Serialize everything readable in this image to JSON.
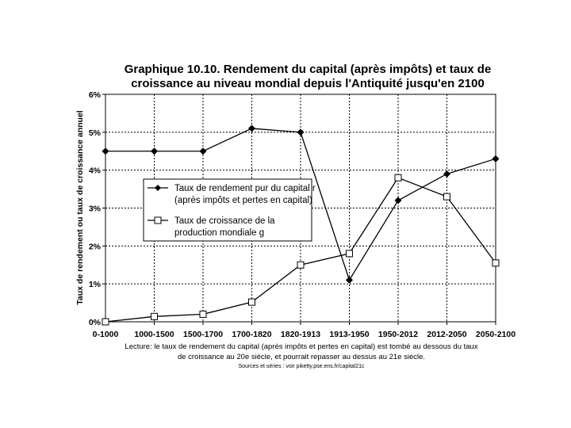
{
  "chart_data": {
    "type": "line",
    "title_line1": "Graphique 10.10. Rendement du capital (après impôts) et taux de",
    "title_line2": "croissance au niveau mondial depuis l'Antiquité jusqu'en 2100",
    "ylabel": "Taux de rendement ou taux de croissance annuel",
    "xlabel": "",
    "ylim": [
      0,
      6
    ],
    "yticks": [
      0,
      1,
      2,
      3,
      4,
      5,
      6
    ],
    "ytick_labels": [
      "0%",
      "1%",
      "2%",
      "3%",
      "4%",
      "5%",
      "6%"
    ],
    "grid": true,
    "legend_position": "center-left",
    "categories": [
      "0-1000",
      "1000-1500",
      "1500-1700",
      "1700-1820",
      "1820-1913",
      "1913-1950",
      "1950-2012",
      "2012-2050",
      "2050-2100"
    ],
    "series": [
      {
        "name": "Taux de rendement pur du capital r (après impôts et pertes en capital)",
        "legend_line1": "Taux de rendement pur du capital r",
        "legend_line2": "(après impôts et pertes en capital)",
        "marker": "diamond-filled",
        "values": [
          4.5,
          4.5,
          4.5,
          5.1,
          5.0,
          1.1,
          3.2,
          3.9,
          4.3
        ]
      },
      {
        "name": "Taux de croissance de la production mondiale g",
        "legend_line1": "Taux de croissance de la",
        "legend_line2": "production mondiale g",
        "marker": "square-open",
        "values": [
          0.0,
          0.14,
          0.2,
          0.52,
          1.5,
          1.8,
          3.8,
          3.3,
          1.55
        ]
      }
    ],
    "caption_line1": "Lecture: le taux de rendement du capital (après impôts et pertes en capital) est tombé au dessous du taux",
    "caption_line2": "de croissance au 20e siècle, et pourrait repasser au dessus au 21e siècle.",
    "sources": "Sources et séries : voir piketty.pse.ens.fr/capital21c"
  },
  "colors": {
    "line": "#000000",
    "background": "#ffffff",
    "grid": "#000000"
  }
}
